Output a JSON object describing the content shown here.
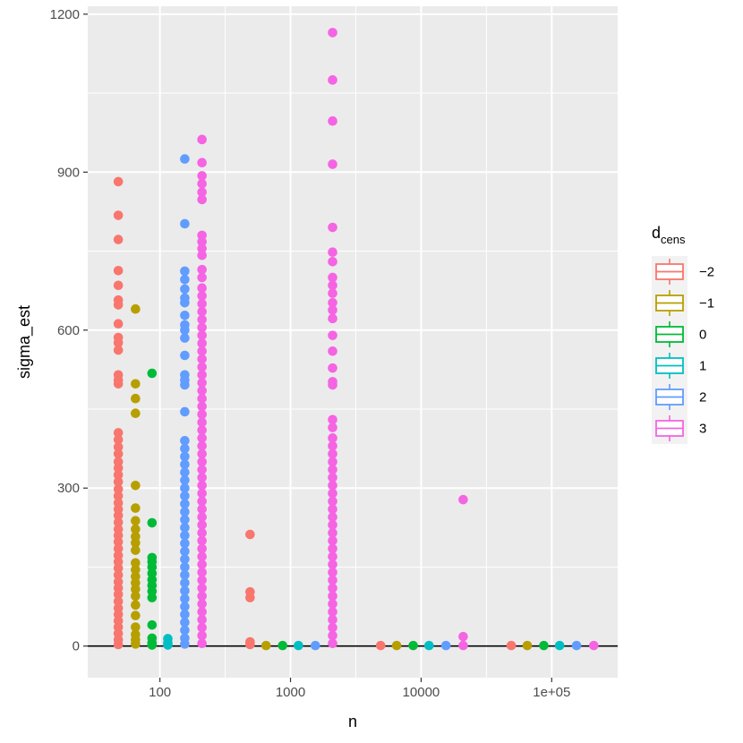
{
  "chart_data": {
    "type": "scatter",
    "xlabel": "n",
    "ylabel": "sigma_est",
    "x_scale": "log10",
    "xlim": [
      28,
      320000
    ],
    "ylim": [
      -60,
      1215
    ],
    "x_ticks": [
      {
        "value": 100,
        "label": "100"
      },
      {
        "value": 1000,
        "label": "1000"
      },
      {
        "value": 10000,
        "label": "10000"
      },
      {
        "value": 100000,
        "label": "1e+05"
      }
    ],
    "y_ticks": [
      {
        "value": 0,
        "label": "0"
      },
      {
        "value": 300,
        "label": "300"
      },
      {
        "value": 600,
        "label": "600"
      },
      {
        "value": 900,
        "label": "900"
      },
      {
        "value": 1200,
        "label": "1200"
      }
    ],
    "hline": 0,
    "grid": true,
    "legend": {
      "title_main": "d",
      "title_sub": "cens",
      "position": "right"
    },
    "series": [
      {
        "name": "−2",
        "color": "#F8766D",
        "points": [
          [
            48,
            882
          ],
          [
            48,
            818
          ],
          [
            48,
            772
          ],
          [
            48,
            713
          ],
          [
            48,
            685
          ],
          [
            48,
            657
          ],
          [
            48,
            648
          ],
          [
            48,
            612
          ],
          [
            48,
            586
          ],
          [
            48,
            576
          ],
          [
            48,
            562
          ],
          [
            48,
            515
          ],
          [
            48,
            505
          ],
          [
            48,
            498
          ],
          [
            48,
            405
          ],
          [
            48,
            392
          ],
          [
            48,
            378
          ],
          [
            48,
            365
          ],
          [
            48,
            350
          ],
          [
            48,
            338
          ],
          [
            48,
            325
          ],
          [
            48,
            312
          ],
          [
            48,
            298
          ],
          [
            48,
            285
          ],
          [
            48,
            272
          ],
          [
            48,
            260
          ],
          [
            48,
            248
          ],
          [
            48,
            235
          ],
          [
            48,
            222
          ],
          [
            48,
            210
          ],
          [
            48,
            198
          ],
          [
            48,
            185
          ],
          [
            48,
            172
          ],
          [
            48,
            160
          ],
          [
            48,
            148
          ],
          [
            48,
            135
          ],
          [
            48,
            122
          ],
          [
            48,
            110
          ],
          [
            48,
            98
          ],
          [
            48,
            85
          ],
          [
            48,
            72
          ],
          [
            48,
            60
          ],
          [
            48,
            48
          ],
          [
            48,
            36
          ],
          [
            48,
            24
          ],
          [
            48,
            12
          ],
          [
            48,
            3
          ],
          [
            490,
            212
          ],
          [
            490,
            103
          ],
          [
            490,
            92
          ],
          [
            490,
            8
          ],
          [
            490,
            3
          ],
          [
            4900,
            1
          ],
          [
            49000,
            1
          ]
        ]
      },
      {
        "name": "−1",
        "color": "#B79F00",
        "points": [
          [
            65,
            640
          ],
          [
            65,
            498
          ],
          [
            65,
            470
          ],
          [
            65,
            442
          ],
          [
            65,
            305
          ],
          [
            65,
            262
          ],
          [
            65,
            238
          ],
          [
            65,
            222
          ],
          [
            65,
            208
          ],
          [
            65,
            196
          ],
          [
            65,
            182
          ],
          [
            65,
            158
          ],
          [
            65,
            145
          ],
          [
            65,
            132
          ],
          [
            65,
            120
          ],
          [
            65,
            108
          ],
          [
            65,
            95
          ],
          [
            65,
            78
          ],
          [
            65,
            58
          ],
          [
            65,
            36
          ],
          [
            65,
            22
          ],
          [
            65,
            12
          ],
          [
            65,
            4
          ],
          [
            650,
            1
          ],
          [
            6500,
            1
          ],
          [
            65000,
            1
          ]
        ]
      },
      {
        "name": "0",
        "color": "#00BA38",
        "points": [
          [
            87,
            518
          ],
          [
            87,
            234
          ],
          [
            87,
            168
          ],
          [
            87,
            160
          ],
          [
            87,
            150
          ],
          [
            87,
            138
          ],
          [
            87,
            126
          ],
          [
            87,
            115
          ],
          [
            87,
            104
          ],
          [
            87,
            92
          ],
          [
            87,
            40
          ],
          [
            87,
            15
          ],
          [
            87,
            6
          ],
          [
            87,
            2
          ],
          [
            870,
            1
          ],
          [
            8700,
            1
          ],
          [
            87000,
            1
          ]
        ]
      },
      {
        "name": "1",
        "color": "#00BFC4",
        "points": [
          [
            115,
            14
          ],
          [
            115,
            6
          ],
          [
            115,
            2
          ],
          [
            1150,
            1
          ],
          [
            11500,
            1
          ],
          [
            115000,
            1
          ]
        ]
      },
      {
        "name": "2",
        "color": "#619CFF",
        "points": [
          [
            155,
            925
          ],
          [
            155,
            802
          ],
          [
            155,
            712
          ],
          [
            155,
            696
          ],
          [
            155,
            678
          ],
          [
            155,
            661
          ],
          [
            155,
            652
          ],
          [
            155,
            628
          ],
          [
            155,
            610
          ],
          [
            155,
            600
          ],
          [
            155,
            585
          ],
          [
            155,
            552
          ],
          [
            155,
            515
          ],
          [
            155,
            505
          ],
          [
            155,
            496
          ],
          [
            155,
            445
          ],
          [
            155,
            390
          ],
          [
            155,
            375
          ],
          [
            155,
            360
          ],
          [
            155,
            345
          ],
          [
            155,
            330
          ],
          [
            155,
            315
          ],
          [
            155,
            300
          ],
          [
            155,
            285
          ],
          [
            155,
            270
          ],
          [
            155,
            255
          ],
          [
            155,
            240
          ],
          [
            155,
            225
          ],
          [
            155,
            210
          ],
          [
            155,
            195
          ],
          [
            155,
            180
          ],
          [
            155,
            165
          ],
          [
            155,
            150
          ],
          [
            155,
            135
          ],
          [
            155,
            120
          ],
          [
            155,
            105
          ],
          [
            155,
            90
          ],
          [
            155,
            75
          ],
          [
            155,
            60
          ],
          [
            155,
            45
          ],
          [
            155,
            30
          ],
          [
            155,
            15
          ],
          [
            155,
            4
          ],
          [
            1550,
            1
          ],
          [
            15500,
            1
          ],
          [
            155000,
            1
          ]
        ]
      },
      {
        "name": "3",
        "color": "#F564E3",
        "points": [
          [
            210,
            962
          ],
          [
            210,
            918
          ],
          [
            210,
            893
          ],
          [
            210,
            878
          ],
          [
            210,
            862
          ],
          [
            210,
            848
          ],
          [
            210,
            780
          ],
          [
            210,
            768
          ],
          [
            210,
            755
          ],
          [
            210,
            742
          ],
          [
            210,
            715
          ],
          [
            210,
            700
          ],
          [
            210,
            680
          ],
          [
            210,
            665
          ],
          [
            210,
            650
          ],
          [
            210,
            635
          ],
          [
            210,
            620
          ],
          [
            210,
            605
          ],
          [
            210,
            590
          ],
          [
            210,
            575
          ],
          [
            210,
            560
          ],
          [
            210,
            545
          ],
          [
            210,
            530
          ],
          [
            210,
            515
          ],
          [
            210,
            500
          ],
          [
            210,
            485
          ],
          [
            210,
            470
          ],
          [
            210,
            455
          ],
          [
            210,
            440
          ],
          [
            210,
            425
          ],
          [
            210,
            410
          ],
          [
            210,
            395
          ],
          [
            210,
            380
          ],
          [
            210,
            365
          ],
          [
            210,
            350
          ],
          [
            210,
            335
          ],
          [
            210,
            320
          ],
          [
            210,
            305
          ],
          [
            210,
            290
          ],
          [
            210,
            275
          ],
          [
            210,
            260
          ],
          [
            210,
            245
          ],
          [
            210,
            230
          ],
          [
            210,
            215
          ],
          [
            210,
            200
          ],
          [
            210,
            185
          ],
          [
            210,
            170
          ],
          [
            210,
            155
          ],
          [
            210,
            140
          ],
          [
            210,
            125
          ],
          [
            210,
            110
          ],
          [
            210,
            95
          ],
          [
            210,
            80
          ],
          [
            210,
            65
          ],
          [
            210,
            50
          ],
          [
            210,
            35
          ],
          [
            210,
            20
          ],
          [
            210,
            5
          ],
          [
            2100,
            1165
          ],
          [
            2100,
            1075
          ],
          [
            2100,
            997
          ],
          [
            2100,
            915
          ],
          [
            2100,
            795
          ],
          [
            2100,
            748
          ],
          [
            2100,
            730
          ],
          [
            2100,
            700
          ],
          [
            2100,
            685
          ],
          [
            2100,
            670
          ],
          [
            2100,
            652
          ],
          [
            2100,
            638
          ],
          [
            2100,
            622
          ],
          [
            2100,
            590
          ],
          [
            2100,
            560
          ],
          [
            2100,
            528
          ],
          [
            2100,
            502
          ],
          [
            2100,
            496
          ],
          [
            2100,
            430
          ],
          [
            2100,
            415
          ],
          [
            2100,
            395
          ],
          [
            2100,
            380
          ],
          [
            2100,
            365
          ],
          [
            2100,
            350
          ],
          [
            2100,
            335
          ],
          [
            2100,
            320
          ],
          [
            2100,
            305
          ],
          [
            2100,
            290
          ],
          [
            2100,
            275
          ],
          [
            2100,
            260
          ],
          [
            2100,
            245
          ],
          [
            2100,
            230
          ],
          [
            2100,
            215
          ],
          [
            2100,
            200
          ],
          [
            2100,
            185
          ],
          [
            2100,
            170
          ],
          [
            2100,
            155
          ],
          [
            2100,
            140
          ],
          [
            2100,
            125
          ],
          [
            2100,
            110
          ],
          [
            2100,
            95
          ],
          [
            2100,
            80
          ],
          [
            2100,
            65
          ],
          [
            2100,
            50
          ],
          [
            2100,
            35
          ],
          [
            2100,
            20
          ],
          [
            2100,
            5
          ],
          [
            21000,
            278
          ],
          [
            21000,
            18
          ],
          [
            21000,
            1
          ],
          [
            210000,
            1
          ]
        ]
      }
    ]
  }
}
